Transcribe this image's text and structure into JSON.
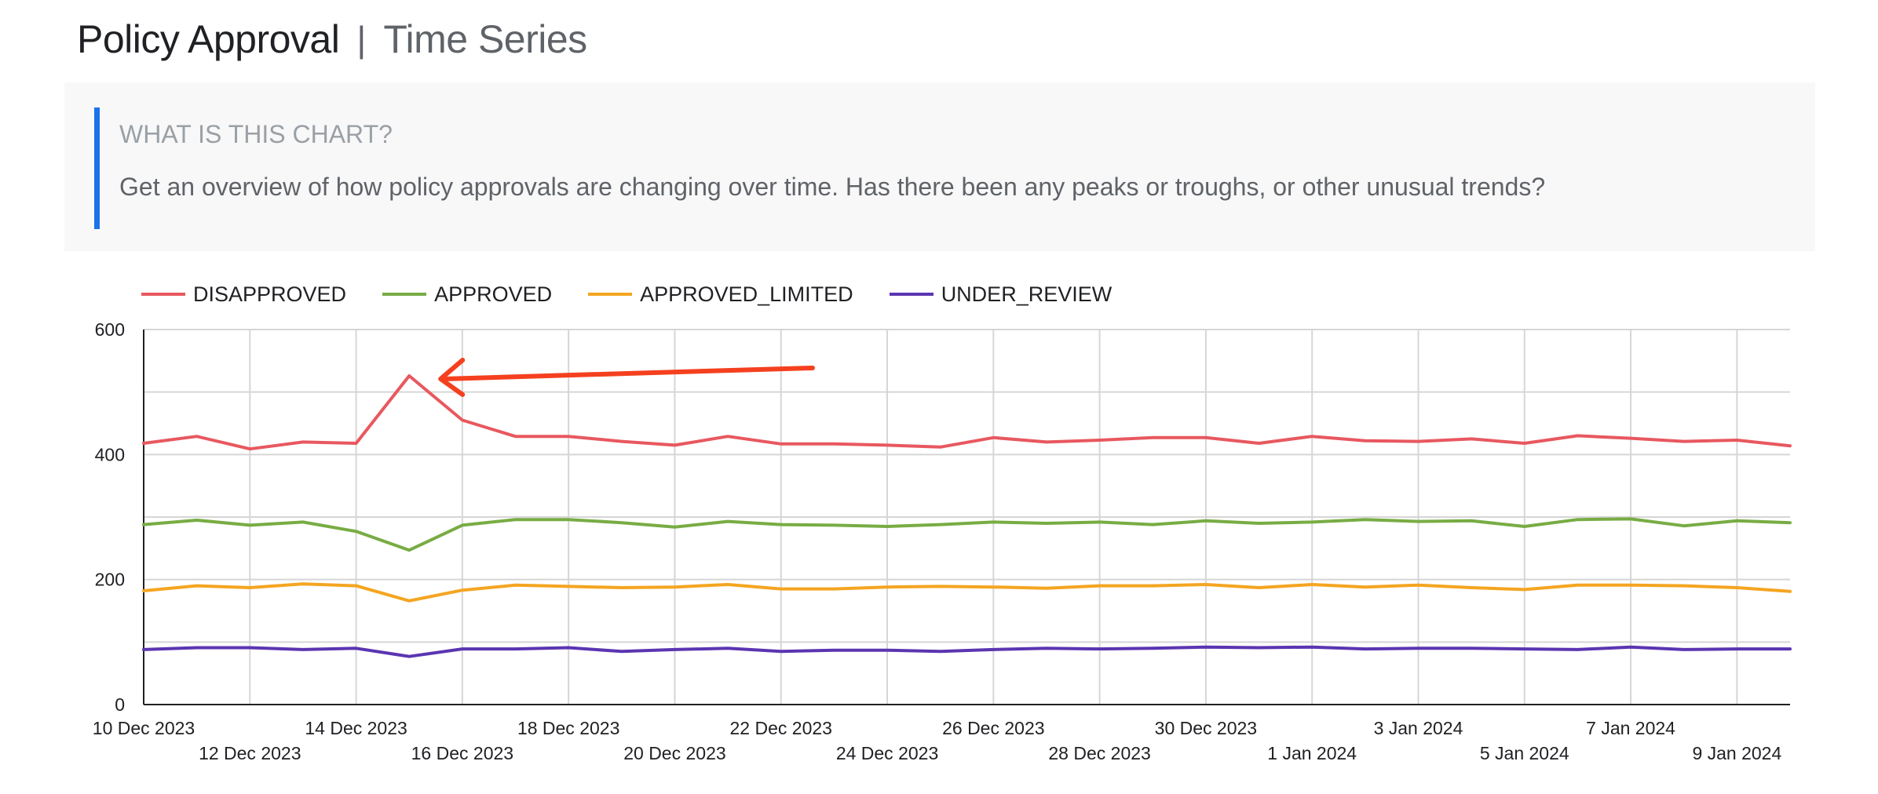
{
  "header": {
    "title": "Policy Approval",
    "separator": "|",
    "subtitle": "Time Series"
  },
  "info": {
    "heading": "WHAT IS THIS CHART?",
    "text": "Get an overview of how policy approvals are changing over time. Has there been any peaks or troughs, or other unusual trends?",
    "accent_color": "#1a73e8"
  },
  "annotation": {
    "type": "arrow",
    "color": "#f4401f",
    "points_to": "DISAPPROVED peak on 15 Dec 2023"
  },
  "chart_data": {
    "type": "line",
    "title": "",
    "xlabel": "",
    "ylabel": "",
    "ylim": [
      0,
      600
    ],
    "yticks": [
      0,
      200,
      400,
      600
    ],
    "grid": true,
    "legend_position": "top-left",
    "x": [
      "10 Dec 2023",
      "11 Dec 2023",
      "12 Dec 2023",
      "13 Dec 2023",
      "14 Dec 2023",
      "15 Dec 2023",
      "16 Dec 2023",
      "17 Dec 2023",
      "18 Dec 2023",
      "19 Dec 2023",
      "20 Dec 2023",
      "21 Dec 2023",
      "22 Dec 2023",
      "23 Dec 2023",
      "24 Dec 2023",
      "25 Dec 2023",
      "26 Dec 2023",
      "27 Dec 2023",
      "28 Dec 2023",
      "29 Dec 2023",
      "30 Dec 2023",
      "31 Dec 2023",
      "1 Jan 2024",
      "2 Jan 2024",
      "3 Jan 2024",
      "4 Jan 2024",
      "5 Jan 2024",
      "6 Jan 2024",
      "7 Jan 2024",
      "8 Jan 2024",
      "9 Jan 2024",
      "10 Jan 2024"
    ],
    "xtick_labels": [
      "10 Dec 2023",
      "12 Dec 2023",
      "14 Dec 2023",
      "16 Dec 2023",
      "18 Dec 2023",
      "20 Dec 2023",
      "22 Dec 2023",
      "24 Dec 2023",
      "26 Dec 2023",
      "28 Dec 2023",
      "30 Dec 2023",
      "1 Jan 2024",
      "3 Jan 2024",
      "5 Jan 2024",
      "7 Jan 2024",
      "9 Jan 2024"
    ],
    "series": [
      {
        "name": "DISAPPROVED",
        "color": "#e8585f",
        "values": [
          418,
          429,
          409,
          420,
          418,
          526,
          455,
          429,
          429,
          421,
          415,
          429,
          417,
          417,
          415,
          412,
          427,
          420,
          423,
          427,
          427,
          418,
          429,
          422,
          421,
          425,
          418,
          430,
          426,
          421,
          423,
          414
        ]
      },
      {
        "name": "APPROVED",
        "color": "#78ac44",
        "values": [
          288,
          295,
          287,
          292,
          277,
          247,
          287,
          296,
          296,
          291,
          284,
          293,
          288,
          287,
          285,
          288,
          292,
          290,
          292,
          288,
          294,
          290,
          292,
          296,
          293,
          294,
          285,
          296,
          297,
          286,
          294,
          291
        ]
      },
      {
        "name": "APPROVED_LIMITED",
        "color": "#f4a521",
        "values": [
          182,
          190,
          187,
          193,
          190,
          166,
          183,
          191,
          189,
          187,
          188,
          192,
          185,
          185,
          188,
          189,
          188,
          186,
          190,
          190,
          192,
          187,
          192,
          188,
          191,
          187,
          184,
          191,
          191,
          190,
          187,
          181
        ]
      },
      {
        "name": "UNDER_REVIEW",
        "color": "#5b35b1",
        "values": [
          88,
          91,
          91,
          88,
          90,
          77,
          89,
          89,
          91,
          85,
          88,
          90,
          85,
          87,
          87,
          85,
          88,
          90,
          89,
          90,
          92,
          91,
          92,
          89,
          90,
          90,
          89,
          88,
          92,
          88,
          89,
          89
        ]
      }
    ]
  }
}
